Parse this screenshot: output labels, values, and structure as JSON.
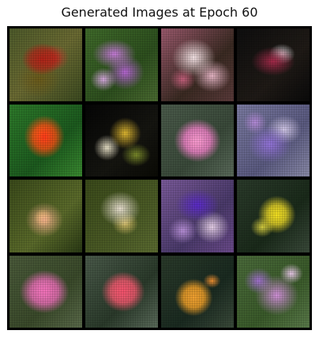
{
  "figure": {
    "title": "Generated Images at Epoch 60"
  },
  "grid": {
    "rows": 4,
    "columns": 4,
    "tiles": [
      {
        "subject": "red flower"
      },
      {
        "subject": "purple flower"
      },
      {
        "subject": "pink-white flower"
      },
      {
        "subject": "dark red flower"
      },
      {
        "subject": "orange-red flower"
      },
      {
        "subject": "yellow-white flower"
      },
      {
        "subject": "pink flower"
      },
      {
        "subject": "purple-white flower"
      },
      {
        "subject": "peach flower"
      },
      {
        "subject": "white flower"
      },
      {
        "subject": "violet flower"
      },
      {
        "subject": "yellow flower"
      },
      {
        "subject": "pink flower"
      },
      {
        "subject": "coral flower"
      },
      {
        "subject": "orange flower"
      },
      {
        "subject": "lilac flower"
      }
    ]
  }
}
